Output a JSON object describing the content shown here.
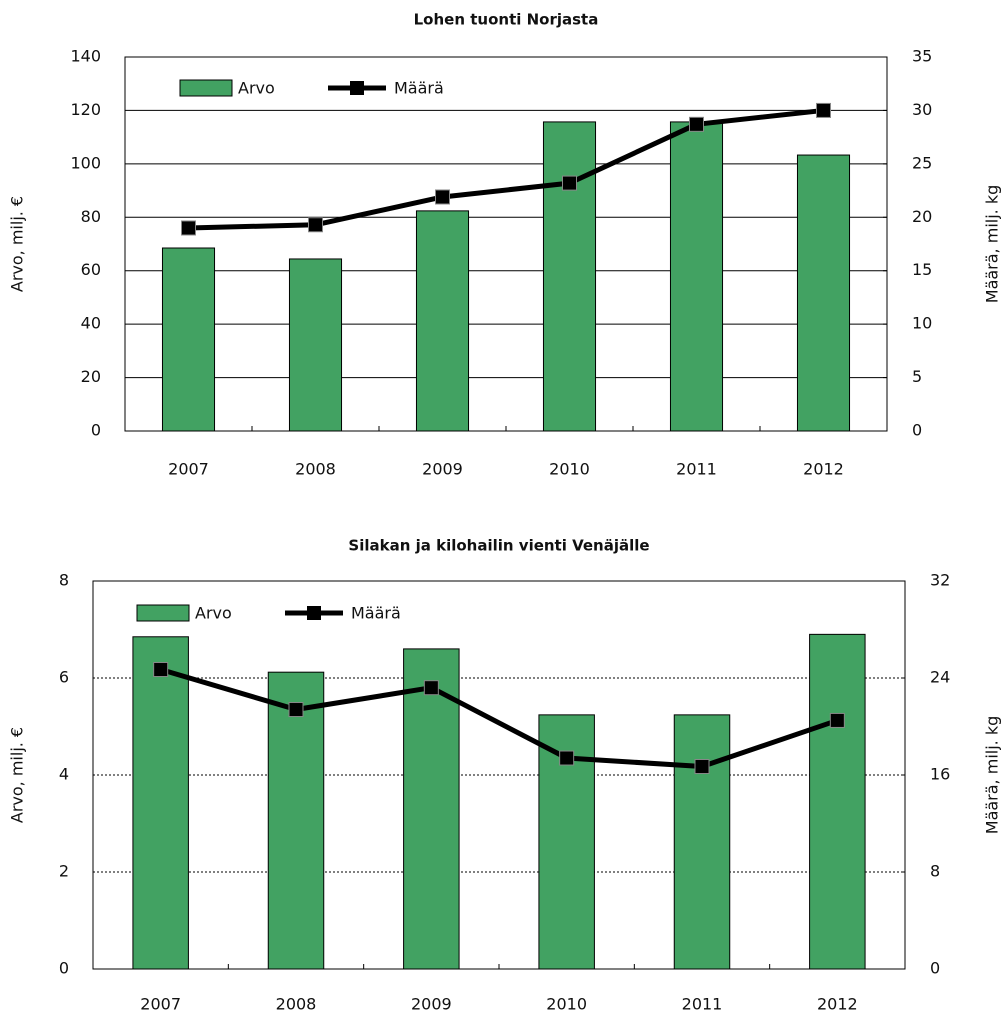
{
  "chart_data": [
    {
      "type": "bar-line",
      "title": "Lohen tuonti Norjasta",
      "categories": [
        "2007",
        "2008",
        "2009",
        "2010",
        "2011",
        "2012"
      ],
      "series": [
        {
          "name": "Arvo",
          "type": "bar",
          "color": "#42a262",
          "values": [
            68.5,
            64.4,
            82.4,
            115.7,
            115.7,
            103.3
          ]
        },
        {
          "name": "Määrä",
          "type": "line",
          "axis": "y2",
          "color": "#000000",
          "values": [
            19.0,
            19.3,
            21.9,
            23.2,
            28.7,
            30.0
          ]
        }
      ],
      "ylabel": "Arvo, milj. €",
      "y2label": "Määrä, milj. kg",
      "ylim": [
        0,
        140
      ],
      "yticks": [
        0,
        20,
        40,
        60,
        80,
        100,
        120,
        140
      ],
      "y2lim": [
        0,
        35
      ],
      "y2ticks": [
        0,
        5,
        10,
        15,
        20,
        25,
        30,
        35
      ],
      "grid": true,
      "grid_style": "solid",
      "legend": "upper left"
    },
    {
      "type": "bar-line",
      "title": "Silakan ja kilohailin vienti Venäjälle",
      "categories": [
        "2007",
        "2008",
        "2009",
        "2010",
        "2011",
        "2012"
      ],
      "series": [
        {
          "name": "Arvo",
          "type": "bar",
          "color": "#42a262",
          "values": [
            6.85,
            6.12,
            6.6,
            5.24,
            5.24,
            6.9
          ]
        },
        {
          "name": "Määrä",
          "type": "line",
          "axis": "y2",
          "color": "#000000",
          "values": [
            24.7,
            21.4,
            23.2,
            17.4,
            16.7,
            20.5
          ]
        }
      ],
      "ylabel": "Arvo, milj. €",
      "y2label": "Määrä, milj. kg",
      "ylim": [
        0,
        8
      ],
      "yticks": [
        0,
        2,
        4,
        6,
        8
      ],
      "y2lim": [
        0,
        32
      ],
      "y2ticks": [
        0,
        8,
        16,
        24,
        32
      ],
      "grid": true,
      "grid_style": "dashed",
      "legend": "upper left"
    }
  ]
}
